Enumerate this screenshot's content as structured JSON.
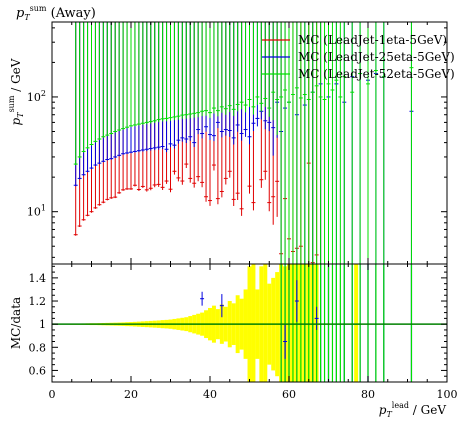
{
  "chart_data": {
    "type": "scatter",
    "title": "p_T^sum (Away)",
    "x": {
      "label": "p_T^lead / GeV",
      "range": [
        0,
        100
      ],
      "ticks": [
        0,
        20,
        40,
        60,
        80,
        100
      ],
      "tick_labels": [
        "0",
        "20",
        "40",
        "60",
        "80",
        "100"
      ]
    },
    "main": {
      "ylabel": "p_T^sum / GeV",
      "yscale": "log",
      "yrange": [
        3.5,
        450
      ],
      "ticks": [
        10,
        100
      ],
      "tick_labels": [
        "10^1",
        "10^2"
      ]
    },
    "ratio": {
      "ylabel": "MC/data",
      "yrange": [
        0.5,
        1.52
      ],
      "ticks": [
        0.6,
        0.8,
        1.0,
        1.2,
        1.4
      ],
      "tick_labels": [
        "0.6",
        "0.8",
        "1",
        "1.2",
        "1.4"
      ],
      "band_color": "#ffff00",
      "reference_line_color": "#008000",
      "band": [
        [
          5,
          0.005
        ],
        [
          6,
          0.005
        ],
        [
          7,
          0.005
        ],
        [
          8,
          0.006
        ],
        [
          9,
          0.007
        ],
        [
          10,
          0.008
        ],
        [
          11,
          0.008
        ],
        [
          12,
          0.009
        ],
        [
          13,
          0.01
        ],
        [
          14,
          0.011
        ],
        [
          15,
          0.012
        ],
        [
          16,
          0.013
        ],
        [
          17,
          0.014
        ],
        [
          18,
          0.015
        ],
        [
          19,
          0.017
        ],
        [
          20,
          0.018
        ],
        [
          21,
          0.02
        ],
        [
          22,
          0.022
        ],
        [
          23,
          0.024
        ],
        [
          24,
          0.026
        ],
        [
          25,
          0.028
        ],
        [
          26,
          0.03
        ],
        [
          27,
          0.032
        ],
        [
          28,
          0.035
        ],
        [
          29,
          0.037
        ],
        [
          30,
          0.04
        ],
        [
          31,
          0.045
        ],
        [
          32,
          0.05
        ],
        [
          33,
          0.055
        ],
        [
          34,
          0.06
        ],
        [
          35,
          0.07
        ],
        [
          36,
          0.08
        ],
        [
          37,
          0.09
        ],
        [
          38,
          0.1
        ],
        [
          39,
          0.12
        ],
        [
          40,
          0.14
        ],
        [
          41,
          0.16
        ],
        [
          42,
          0.13
        ],
        [
          43,
          0.17
        ],
        [
          44,
          0.15
        ],
        [
          45,
          0.2
        ],
        [
          46,
          0.18
        ],
        [
          47,
          0.25
        ],
        [
          48,
          0.22
        ],
        [
          49,
          0.3
        ],
        [
          50,
          0.5
        ],
        [
          51,
          0.55
        ],
        [
          52,
          0.3
        ],
        [
          53,
          0.5
        ],
        [
          54,
          0.6
        ],
        [
          55,
          0.35
        ],
        [
          56,
          0.4
        ],
        [
          57,
          0.45
        ],
        [
          58,
          0.55
        ],
        [
          59,
          0.5
        ],
        [
          60,
          0.55
        ],
        [
          61,
          0.6
        ],
        [
          62,
          0.65
        ],
        [
          63,
          0.55
        ],
        [
          64,
          0.6
        ],
        [
          65,
          0.65
        ],
        [
          66,
          0.6
        ],
        [
          67,
          0.65
        ],
        [
          77,
          0.7
        ]
      ]
    },
    "series": [
      {
        "name": "MC (LeadJet-1eta-5GeV)",
        "color": "#e00000",
        "points": [
          [
            6,
            6.3
          ],
          [
            7,
            7.5
          ],
          [
            8,
            8.5
          ],
          [
            9,
            9.3
          ],
          [
            10,
            10.0
          ],
          [
            11,
            10.8
          ],
          [
            12,
            11.5
          ],
          [
            13,
            12.1
          ],
          [
            14,
            12.8
          ],
          [
            15,
            13.2
          ],
          [
            16,
            13.4
          ],
          [
            17,
            14.6
          ],
          [
            18,
            15.5
          ],
          [
            19,
            15.8
          ],
          [
            20,
            15.8
          ],
          [
            21,
            17.0
          ],
          [
            22,
            15.6
          ],
          [
            23,
            16.6
          ],
          [
            24,
            15.5
          ],
          [
            25,
            16.0
          ],
          [
            26,
            17.1
          ],
          [
            27,
            17.3
          ],
          [
            28,
            16.3
          ],
          [
            29,
            18.5
          ],
          [
            30,
            15.7
          ],
          [
            31,
            22.5
          ],
          [
            32,
            19.7
          ],
          [
            33,
            18.5
          ],
          [
            34,
            26.0
          ],
          [
            35,
            19.5
          ],
          [
            36,
            17.7
          ],
          [
            37,
            20.2
          ],
          [
            38,
            18.0
          ],
          [
            39,
            13.5
          ],
          [
            40,
            12.5
          ],
          [
            41,
            25.5
          ],
          [
            42,
            13.0
          ],
          [
            43,
            15.0
          ],
          [
            44,
            19.5
          ],
          [
            45,
            22.5
          ],
          [
            46,
            12.8
          ],
          [
            47,
            14.5
          ],
          [
            48,
            10.6
          ],
          [
            50,
            16.7
          ],
          [
            51,
            12.0
          ],
          [
            53,
            19.0
          ],
          [
            54,
            22.5
          ],
          [
            55,
            12.0
          ],
          [
            56,
            13.5
          ],
          [
            57,
            18.4
          ],
          [
            58,
            4.3
          ],
          [
            59,
            13.0
          ],
          [
            60,
            5.8
          ],
          [
            61,
            4.5
          ],
          [
            62,
            4.8
          ],
          [
            63,
            5.0
          ],
          [
            65,
            26.5
          ],
          [
            66,
            3.6
          ],
          [
            67,
            4.2
          ],
          [
            68,
            3.3
          ]
        ]
      },
      {
        "name": "MC (LeadJet-25eta-5GeV)",
        "color": "#0000e0",
        "points": [
          [
            6,
            17.0
          ],
          [
            7,
            19.5
          ],
          [
            8,
            21.0
          ],
          [
            9,
            22.5
          ],
          [
            10,
            24.0
          ],
          [
            11,
            25.5
          ],
          [
            12,
            26.5
          ],
          [
            13,
            27.5
          ],
          [
            14,
            28.5
          ],
          [
            15,
            29.0
          ],
          [
            16,
            30.0
          ],
          [
            17,
            31.0
          ],
          [
            18,
            32.0
          ],
          [
            19,
            32.5
          ],
          [
            20,
            33.0
          ],
          [
            21,
            33.5
          ],
          [
            22,
            34.0
          ],
          [
            23,
            34.5
          ],
          [
            24,
            35.0
          ],
          [
            25,
            35.5
          ],
          [
            26,
            36.0
          ],
          [
            27,
            36.5
          ],
          [
            28,
            37.0
          ],
          [
            29,
            35.0
          ],
          [
            30,
            39.0
          ],
          [
            31,
            38.0
          ],
          [
            32,
            42.0
          ],
          [
            33,
            44.0
          ],
          [
            34,
            43.0
          ],
          [
            35,
            45.0
          ],
          [
            36,
            40.0
          ],
          [
            37,
            52.0
          ],
          [
            38,
            48.0
          ],
          [
            39,
            55.0
          ],
          [
            40,
            47.0
          ],
          [
            41,
            46.0
          ],
          [
            42,
            60.0
          ],
          [
            43,
            50.0
          ],
          [
            44,
            52.0
          ],
          [
            45,
            51.0
          ],
          [
            46,
            44.0
          ],
          [
            47,
            57.0
          ],
          [
            48,
            48.0
          ],
          [
            49,
            52.0
          ],
          [
            50,
            45.0
          ],
          [
            51,
            59.0
          ],
          [
            52,
            65.0
          ],
          [
            53,
            75.0
          ],
          [
            54,
            62.0
          ],
          [
            55,
            60.0
          ],
          [
            56,
            54.0
          ],
          [
            57,
            90.0
          ],
          [
            58,
            50.0
          ],
          [
            59,
            80.0
          ],
          [
            60,
            90.0
          ],
          [
            62,
            70.0
          ],
          [
            64,
            85.0
          ],
          [
            66,
            110.0
          ],
          [
            68,
            130.0
          ],
          [
            70,
            100.0
          ],
          [
            72,
            130.0
          ],
          [
            74,
            90.0
          ],
          [
            76,
            150.0
          ],
          [
            78,
            160.0
          ],
          [
            80,
            140.0
          ],
          [
            82,
            160.0
          ],
          [
            84,
            150.0
          ],
          [
            91,
            75.0
          ]
        ]
      },
      {
        "name": "MC (LeadJet-52eta-5GeV)",
        "color": "#00e000",
        "points": [
          [
            6,
            26.0
          ],
          [
            7,
            30.0
          ],
          [
            8,
            33.5
          ],
          [
            9,
            36.0
          ],
          [
            10,
            38.5
          ],
          [
            11,
            41.0
          ],
          [
            12,
            43.0
          ],
          [
            13,
            45.0
          ],
          [
            14,
            46.5
          ],
          [
            15,
            48.0
          ],
          [
            16,
            50.0
          ],
          [
            17,
            51.5
          ],
          [
            18,
            53.0
          ],
          [
            19,
            54.5
          ],
          [
            20,
            56.0
          ],
          [
            21,
            57.0
          ],
          [
            22,
            58.0
          ],
          [
            23,
            59.0
          ],
          [
            24,
            60.0
          ],
          [
            25,
            61.0
          ],
          [
            26,
            62.0
          ],
          [
            27,
            63.5
          ],
          [
            28,
            64.5
          ],
          [
            29,
            65.0
          ],
          [
            30,
            66.0
          ],
          [
            31,
            67.0
          ],
          [
            32,
            68.0
          ],
          [
            33,
            69.5
          ],
          [
            34,
            70.0
          ],
          [
            35,
            71.0
          ],
          [
            36,
            72.0
          ],
          [
            37,
            73.0
          ],
          [
            38,
            75.0
          ],
          [
            39,
            76.0
          ],
          [
            40,
            73.0
          ],
          [
            41,
            80.0
          ],
          [
            42,
            76.0
          ],
          [
            43,
            82.0
          ],
          [
            44,
            79.0
          ],
          [
            45,
            84.0
          ],
          [
            46,
            78.0
          ],
          [
            47,
            86.0
          ],
          [
            48,
            90.0
          ],
          [
            49,
            85.0
          ],
          [
            50,
            95.0
          ],
          [
            51,
            82.0
          ],
          [
            52,
            100.0
          ],
          [
            53,
            88.0
          ],
          [
            54,
            97.0
          ],
          [
            55,
            80.0
          ],
          [
            56,
            110.0
          ],
          [
            57,
            95.0
          ],
          [
            58,
            100.0
          ],
          [
            59,
            115.0
          ],
          [
            60,
            90.0
          ],
          [
            61,
            105.0
          ],
          [
            62,
            120.0
          ],
          [
            63,
            98.0
          ],
          [
            64,
            105.0
          ],
          [
            65,
            95.0
          ],
          [
            66,
            110.0
          ],
          [
            67,
            125.0
          ],
          [
            68,
            100.0
          ],
          [
            69,
            95.0
          ],
          [
            70,
            130.0
          ],
          [
            71,
            115.0
          ],
          [
            72,
            140.0
          ],
          [
            73,
            100.0
          ],
          [
            74,
            150.0
          ],
          [
            76,
            110.0
          ],
          [
            78,
            160.0
          ],
          [
            80,
            130.0
          ],
          [
            82,
            170.0
          ],
          [
            84,
            150.0
          ],
          [
            91,
            180.0
          ]
        ]
      }
    ]
  }
}
